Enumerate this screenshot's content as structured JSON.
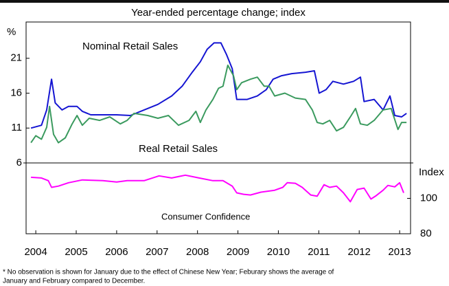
{
  "chart_data": {
    "type": "line",
    "title": "Year-ended percentage change; index",
    "y_label": "%",
    "y2_label": "Index",
    "xlim": [
      2003.76,
      2013.27
    ],
    "xticks": [
      2004,
      2005,
      2006,
      2007,
      2008,
      2009,
      2010,
      2011,
      2012,
      2013
    ],
    "ylim": [
      6,
      26.2
    ],
    "yticks": [
      6,
      11,
      16,
      21
    ],
    "y2lim": [
      80,
      120
    ],
    "y2ticks": [
      80,
      100
    ],
    "series": [
      {
        "name": "Nominal Retail Sales",
        "color": "#1414d2",
        "x": [
          2003.88,
          2004.14,
          2004.27,
          2004.39,
          2004.48,
          2004.65,
          2004.81,
          2005.02,
          2005.15,
          2005.36,
          2005.66,
          2006.0,
          2006.34,
          2006.68,
          2007.02,
          2007.36,
          2007.62,
          2007.87,
          2008.07,
          2008.24,
          2008.41,
          2008.58,
          2008.72,
          2008.86,
          2008.97,
          2009.23,
          2009.48,
          2009.7,
          2009.87,
          2010.08,
          2010.33,
          2010.67,
          2010.89,
          2011.01,
          2011.18,
          2011.35,
          2011.61,
          2011.86,
          2012.03,
          2012.12,
          2012.37,
          2012.59,
          2012.76,
          2012.88,
          2013.05,
          2013.17
        ],
        "values": [
          11.0,
          11.4,
          13.6,
          18.0,
          14.6,
          13.6,
          14.1,
          14.1,
          13.4,
          12.9,
          12.9,
          12.9,
          12.8,
          13.6,
          14.4,
          15.6,
          17.0,
          19.0,
          20.5,
          22.3,
          23.2,
          23.2,
          21.5,
          19.5,
          15.1,
          15.1,
          15.6,
          16.5,
          18.0,
          18.5,
          18.8,
          19.0,
          19.2,
          16.0,
          16.5,
          17.7,
          17.3,
          17.7,
          18.3,
          14.8,
          15.1,
          13.6,
          15.6,
          12.8,
          12.6,
          13.1
        ]
      },
      {
        "name": "Real Retail Sales",
        "color": "#3a9a5e",
        "x": [
          2003.88,
          2004.0,
          2004.14,
          2004.27,
          2004.34,
          2004.44,
          2004.56,
          2004.73,
          2004.9,
          2005.02,
          2005.15,
          2005.32,
          2005.58,
          2005.83,
          2006.09,
          2006.26,
          2006.43,
          2006.77,
          2007.02,
          2007.28,
          2007.53,
          2007.79,
          2007.96,
          2008.07,
          2008.21,
          2008.38,
          2008.52,
          2008.63,
          2008.75,
          2008.89,
          2008.97,
          2009.09,
          2009.31,
          2009.48,
          2009.65,
          2009.77,
          2009.91,
          2010.16,
          2010.42,
          2010.67,
          2010.84,
          2010.96,
          2011.1,
          2011.27,
          2011.44,
          2011.61,
          2011.78,
          2011.91,
          2012.03,
          2012.2,
          2012.37,
          2012.59,
          2012.79,
          2012.96,
          2013.05,
          2013.17
        ],
        "values": [
          8.9,
          9.9,
          9.4,
          11.1,
          14.1,
          10.1,
          8.9,
          9.6,
          11.6,
          12.8,
          11.4,
          12.4,
          12.1,
          12.6,
          11.6,
          12.1,
          13.1,
          12.8,
          12.4,
          12.8,
          11.4,
          12.1,
          13.4,
          11.8,
          13.6,
          15.1,
          16.7,
          17.0,
          20.0,
          18.5,
          16.5,
          17.5,
          18.0,
          18.3,
          17.0,
          17.0,
          15.6,
          16.0,
          15.3,
          15.1,
          13.6,
          11.8,
          11.6,
          12.1,
          10.6,
          11.1,
          12.6,
          13.8,
          11.6,
          11.4,
          12.1,
          13.6,
          13.8,
          10.8,
          11.8,
          11.8
        ]
      },
      {
        "name": "Consumer Confidence",
        "color": "#ff00ff",
        "axis": "y2",
        "x": [
          2003.88,
          2004.14,
          2004.31,
          2004.39,
          2004.56,
          2004.81,
          2005.15,
          2005.66,
          2006.0,
          2006.26,
          2006.68,
          2007.05,
          2007.36,
          2007.7,
          2008.04,
          2008.38,
          2008.63,
          2008.86,
          2008.97,
          2009.14,
          2009.31,
          2009.57,
          2009.91,
          2010.11,
          2010.22,
          2010.42,
          2010.59,
          2010.8,
          2010.96,
          2011.13,
          2011.27,
          2011.44,
          2011.61,
          2011.78,
          2011.95,
          2012.12,
          2012.29,
          2012.42,
          2012.59,
          2012.71,
          2012.88,
          2013.0,
          2013.1
        ],
        "values": [
          111.9,
          111.5,
          110.0,
          106.2,
          106.9,
          108.8,
          110.4,
          110.0,
          109.2,
          110.0,
          110.0,
          112.7,
          111.5,
          113.1,
          111.5,
          110.0,
          110.0,
          106.9,
          103.1,
          102.3,
          101.9,
          103.5,
          104.6,
          106.2,
          108.8,
          108.5,
          106.2,
          101.9,
          101.2,
          107.7,
          106.2,
          106.9,
          103.1,
          98.1,
          105.0,
          105.8,
          99.6,
          101.5,
          104.6,
          107.3,
          106.5,
          108.8,
          103.1
        ]
      }
    ],
    "note": [
      "* No observation is shown for January due to the effect of Chinese New Year; Feburary shows the average of",
      "January and February compared to December."
    ]
  }
}
